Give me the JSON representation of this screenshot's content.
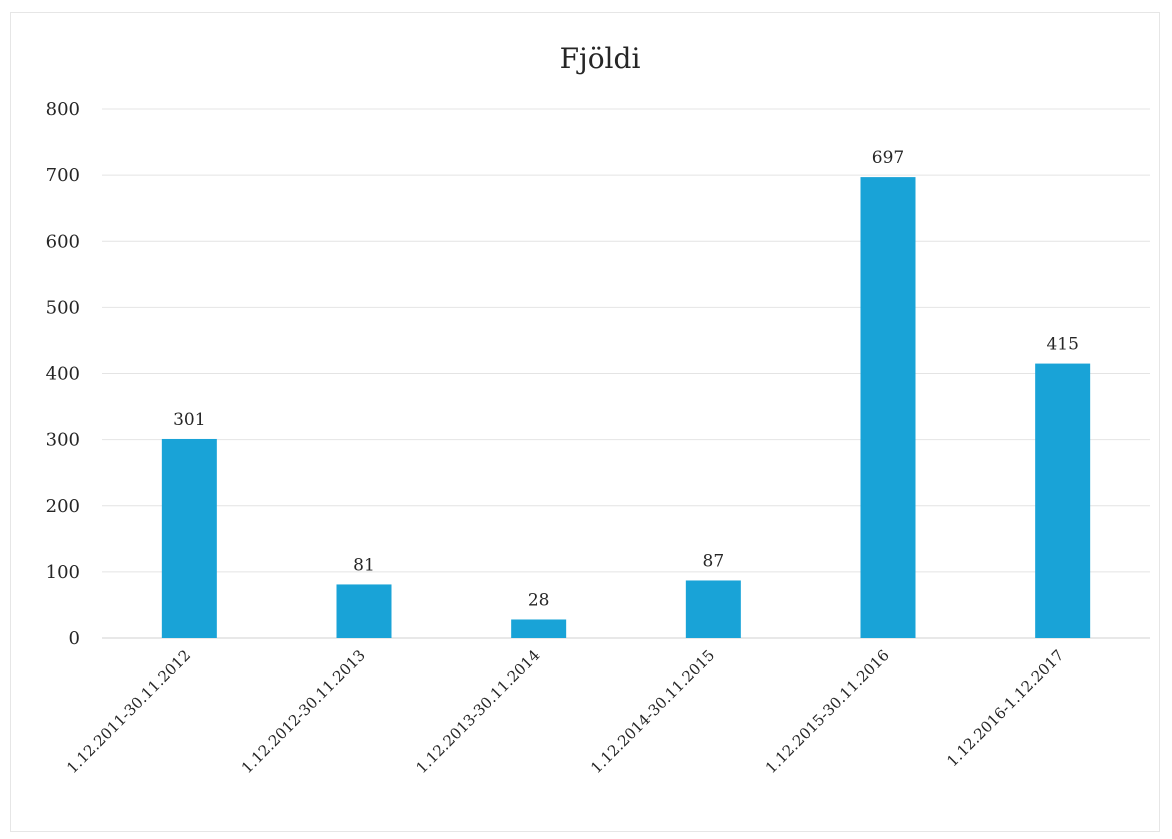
{
  "chart_data": {
    "type": "bar",
    "title": "Fjöldi",
    "categories": [
      "1.12.2011-30.11.2012",
      "1.12.2012-30.11.2013",
      "1.12.2013-30.11.2014",
      "1.12.2014-30.11.2015",
      "1.12.2015-30.11.2016",
      "1.12.2016-1.12.2017"
    ],
    "values": [
      301,
      81,
      28,
      87,
      697,
      415
    ],
    "data_labels": [
      "301",
      "81",
      "28",
      "87",
      "697",
      "415"
    ],
    "y_ticks": [
      0,
      100,
      200,
      300,
      400,
      500,
      600,
      700,
      800
    ],
    "xlabel": "",
    "ylabel": "",
    "ylim": [
      0,
      800
    ],
    "grid": true,
    "legend": "none",
    "colors": {
      "bar": "#19a3d7",
      "text": "#262626",
      "grid": "#e4e4e4"
    }
  }
}
